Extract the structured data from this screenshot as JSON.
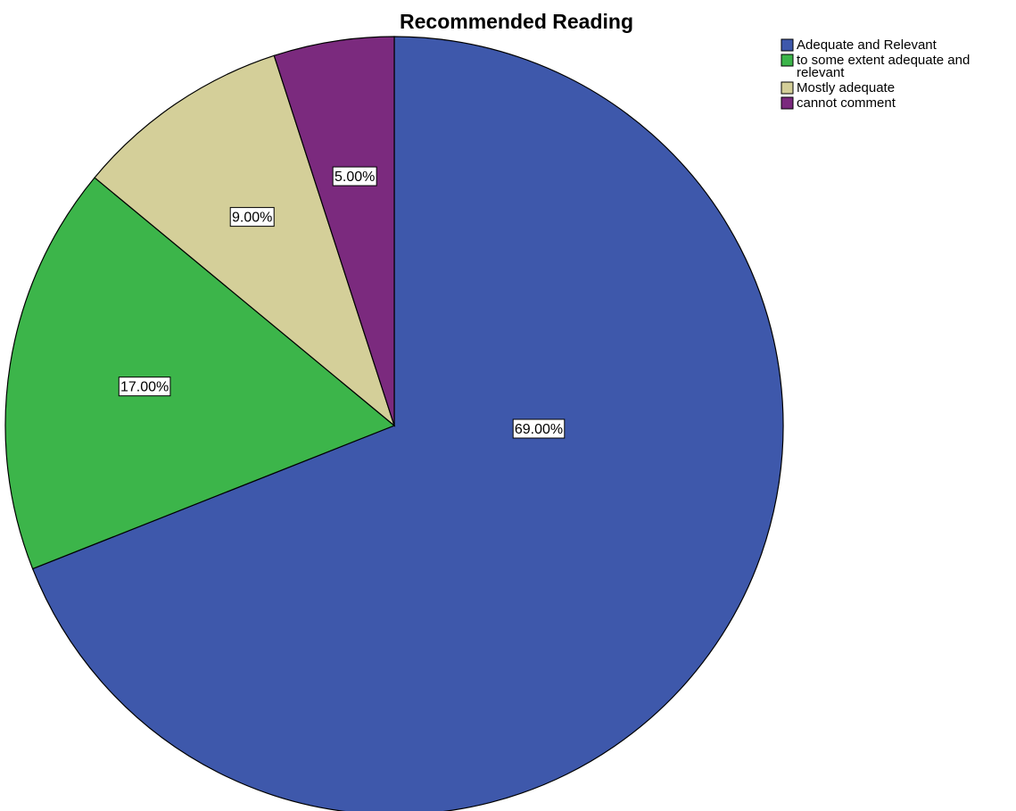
{
  "chart_data": {
    "type": "pie",
    "title": "Recommended Reading",
    "unit": "%",
    "start_angle_deg": 0,
    "direction": "clockwise",
    "legend_position": "top-right",
    "slices": [
      {
        "label": "Adequate and Relevant",
        "value": 69.0,
        "display": "69.00%",
        "color": "#3e58ab"
      },
      {
        "label": "to some extent adequate and relevant",
        "value": 17.0,
        "display": "17.00%",
        "color": "#3cb54a"
      },
      {
        "label": "Mostly adequate",
        "value": 9.0,
        "display": "9.00%",
        "color": "#d4cf99"
      },
      {
        "label": "cannot comment",
        "value": 5.0,
        "display": "5.00%",
        "color": "#7b2a7e"
      }
    ]
  }
}
